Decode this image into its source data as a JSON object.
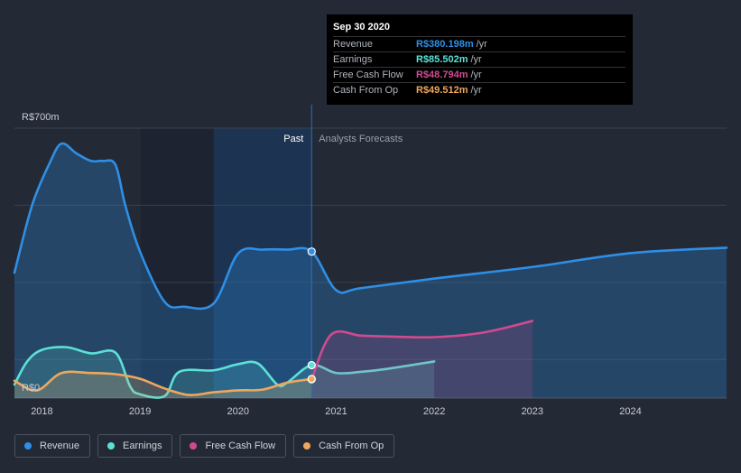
{
  "tooltip": {
    "date": "Sep 30 2020",
    "rows": [
      {
        "label": "Revenue",
        "value": "R$380.198m",
        "unit": "/yr",
        "color": "#2e8fe6"
      },
      {
        "label": "Earnings",
        "value": "R$85.502m",
        "unit": "/yr",
        "color": "#5ce1d6"
      },
      {
        "label": "Free Cash Flow",
        "value": "R$48.794m",
        "unit": "/yr",
        "color": "#d14a8f"
      },
      {
        "label": "Cash From Op",
        "value": "R$49.512m",
        "unit": "/yr",
        "color": "#efa75d"
      }
    ]
  },
  "legend": [
    {
      "label": "Revenue",
      "color": "#2e8fe6"
    },
    {
      "label": "Earnings",
      "color": "#5ce1d6"
    },
    {
      "label": "Free Cash Flow",
      "color": "#d14a8f"
    },
    {
      "label": "Cash From Op",
      "color": "#efa75d"
    }
  ],
  "chart_data": {
    "type": "area",
    "title": "",
    "xlabel": "",
    "ylabel": "",
    "y_top_label": "R$700m",
    "y_bottom_label": "R$0",
    "ylim": [
      0,
      700
    ],
    "xlim": [
      2017.72,
      2024.98
    ],
    "x_ticks": [
      2018,
      2019,
      2020,
      2021,
      2022,
      2023,
      2024
    ],
    "x_tick_labels": [
      "2018",
      "2019",
      "2020",
      "2021",
      "2022",
      "2023",
      "2024"
    ],
    "past_label": "Past",
    "forecast_label": "Analysts Forecasts",
    "divider_x": 2020.75,
    "highlight_start": 2019.75,
    "series": [
      {
        "name": "Revenue",
        "color": "#2e8fe6",
        "points": [
          [
            2017.72,
            325
          ],
          [
            2017.9,
            500
          ],
          [
            2018.08,
            610
          ],
          [
            2018.2,
            660
          ],
          [
            2018.35,
            635
          ],
          [
            2018.5,
            615
          ],
          [
            2018.62,
            615
          ],
          [
            2018.75,
            605
          ],
          [
            2018.85,
            500
          ],
          [
            2019.0,
            380
          ],
          [
            2019.25,
            250
          ],
          [
            2019.45,
            237
          ],
          [
            2019.75,
            245
          ],
          [
            2020.0,
            375
          ],
          [
            2020.25,
            385
          ],
          [
            2020.5,
            385
          ],
          [
            2020.75,
            380
          ],
          [
            2021.0,
            280
          ],
          [
            2021.25,
            285
          ],
          [
            2022.0,
            310
          ],
          [
            2023.0,
            340
          ],
          [
            2024.0,
            376
          ],
          [
            2024.98,
            390
          ]
        ],
        "fill_end": 2024.98
      },
      {
        "name": "Earnings",
        "color": "#5ce1d6",
        "points": [
          [
            2017.72,
            35
          ],
          [
            2017.85,
            95
          ],
          [
            2018.0,
            125
          ],
          [
            2018.25,
            132
          ],
          [
            2018.5,
            116
          ],
          [
            2018.75,
            118
          ],
          [
            2018.9,
            30
          ],
          [
            2019.0,
            10
          ],
          [
            2019.25,
            5
          ],
          [
            2019.4,
            68
          ],
          [
            2019.75,
            72
          ],
          [
            2020.0,
            88
          ],
          [
            2020.2,
            90
          ],
          [
            2020.4,
            35
          ],
          [
            2020.5,
            40
          ],
          [
            2020.75,
            85.5
          ],
          [
            2021.0,
            65
          ],
          [
            2021.25,
            68
          ],
          [
            2021.5,
            75
          ],
          [
            2022.0,
            95
          ]
        ],
        "fill_end": 2022.0
      },
      {
        "name": "Free Cash Flow",
        "color": "#d14a8f",
        "points": [
          [
            2020.75,
            48.8
          ],
          [
            2020.95,
            165
          ],
          [
            2021.25,
            162
          ],
          [
            2021.5,
            160
          ],
          [
            2022.0,
            158
          ],
          [
            2022.5,
            170
          ],
          [
            2023.0,
            200
          ]
        ],
        "fill_end": 2023.0
      },
      {
        "name": "Cash From Op",
        "color": "#efa75d",
        "points": [
          [
            2017.72,
            45
          ],
          [
            2017.95,
            20
          ],
          [
            2018.2,
            65
          ],
          [
            2018.5,
            65
          ],
          [
            2018.75,
            62
          ],
          [
            2019.0,
            50
          ],
          [
            2019.25,
            25
          ],
          [
            2019.5,
            8
          ],
          [
            2019.75,
            15
          ],
          [
            2020.0,
            20
          ],
          [
            2020.25,
            22
          ],
          [
            2020.5,
            40
          ],
          [
            2020.75,
            49.5
          ]
        ]
      }
    ]
  }
}
